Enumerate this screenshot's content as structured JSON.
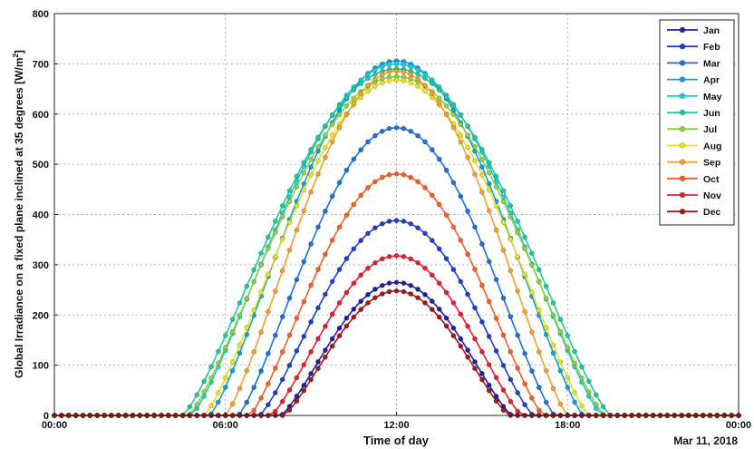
{
  "chart_data": {
    "type": "line",
    "title": "",
    "xlabel": "Time of day",
    "ylabel": "Global Irradiance on a fixed plane inclined at 35 degrees [W/m²]",
    "ylabel_main": "Global Irradiance on a fixed plane inclined at 35 degrees [W/m",
    "ylabel_sup": "2",
    "ylabel_end": "]",
    "date_label": "Mar 11, 2018",
    "xlim": [
      0,
      24
    ],
    "ylim": [
      0,
      800
    ],
    "x_ticks": [
      0,
      6,
      12,
      18,
      24
    ],
    "x_tick_labels": [
      "00:00",
      "06:00",
      "12:00",
      "18:00",
      "00:00"
    ],
    "y_ticks": [
      0,
      100,
      200,
      300,
      400,
      500,
      600,
      700,
      800
    ],
    "y_tick_labels": [
      "0",
      "100",
      "200",
      "300",
      "400",
      "500",
      "600",
      "700",
      "800"
    ],
    "grid": true,
    "legend_position": "top-right",
    "sample_step_hours": 0.25,
    "series": [
      {
        "name": "Jan",
        "color": "#1f1fa0",
        "peak": 265,
        "sunrise": 7.95,
        "sunset": 16.05
      },
      {
        "name": "Feb",
        "color": "#1e3fc8",
        "peak": 388,
        "sunrise": 7.2,
        "sunset": 16.8
      },
      {
        "name": "Mar",
        "color": "#1e6fd8",
        "peak": 573,
        "sunrise": 6.45,
        "sunset": 17.55
      },
      {
        "name": "Apr",
        "color": "#10a0d8",
        "peak": 706,
        "sunrise": 5.45,
        "sunset": 18.55
      },
      {
        "name": "May",
        "color": "#20c8d8",
        "peak": 700,
        "sunrise": 4.8,
        "sunset": 19.2
      },
      {
        "name": "Jun",
        "color": "#20c8a0",
        "peak": 690,
        "sunrise": 4.5,
        "sunset": 19.5
      },
      {
        "name": "Jul",
        "color": "#8ed040",
        "peak": 675,
        "sunrise": 4.7,
        "sunset": 19.3
      },
      {
        "name": "Aug",
        "color": "#e8e020",
        "peak": 668,
        "sunrise": 5.25,
        "sunset": 18.75
      },
      {
        "name": "Sep",
        "color": "#f0a030",
        "peak": 686,
        "sunrise": 6.0,
        "sunset": 18.0
      },
      {
        "name": "Oct",
        "color": "#f06028",
        "peak": 481,
        "sunrise": 6.85,
        "sunset": 17.15
      },
      {
        "name": "Nov",
        "color": "#e02030",
        "peak": 318,
        "sunrise": 7.6,
        "sunset": 16.4
      },
      {
        "name": "Dec",
        "color": "#a01818",
        "peak": 248,
        "sunrise": 8.05,
        "sunset": 15.95
      }
    ]
  }
}
